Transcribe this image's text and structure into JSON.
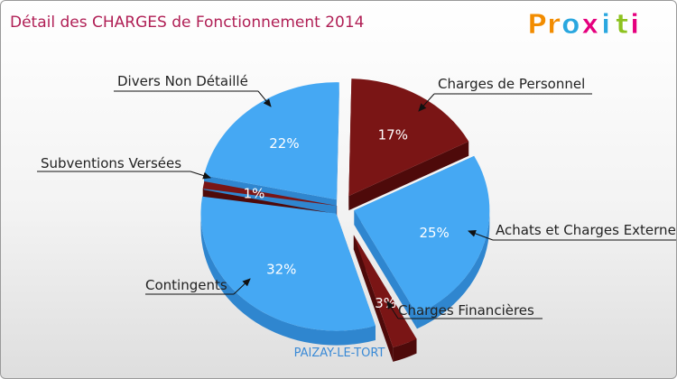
{
  "title": "Détail des CHARGES de Fonctionnement 2014",
  "logo": {
    "text": "Proxiti",
    "letters": [
      "P",
      "r",
      "o",
      "x",
      "i",
      "t",
      "i"
    ],
    "colors": [
      "#f28c00",
      "#f28c00",
      "#2aa7df",
      "#e5007e",
      "#2aa7df",
      "#8dc21f",
      "#e5007e"
    ]
  },
  "footer": "PAIZAY-LE-TORT",
  "colors": {
    "blue": "#45a8f3",
    "blue_dark": "#2f86cf",
    "red": "#7a1515",
    "red_dark": "#4e0a0a",
    "title": "#b01f55"
  },
  "chart_data": {
    "type": "pie",
    "title": "Détail des CHARGES de Fonctionnement 2014",
    "slices": [
      {
        "label": "Charges de Personnel",
        "value": 17,
        "pct_label": "17%",
        "color": "red"
      },
      {
        "label": "Achats et Charges Externes",
        "value": 25,
        "pct_label": "25%",
        "color": "blue"
      },
      {
        "label": "Charges Financières",
        "value": 3,
        "pct_label": "3%",
        "color": "red"
      },
      {
        "label": "Contingents",
        "value": 32,
        "pct_label": "32%",
        "color": "blue"
      },
      {
        "label": "Subventions Versées",
        "value": 1,
        "pct_label": "1%",
        "color": "red"
      },
      {
        "label": "Divers Non Détaillé",
        "value": 22,
        "pct_label": "22%",
        "color": "blue"
      }
    ],
    "labels": {
      "personnel": "Charges de Personnel",
      "achats": "Achats et Charges Externes",
      "financieres": "Charges Financières",
      "contingents": "Contingents",
      "subventions": "Subventions Versées",
      "divers": "Divers Non Détaillé"
    }
  }
}
